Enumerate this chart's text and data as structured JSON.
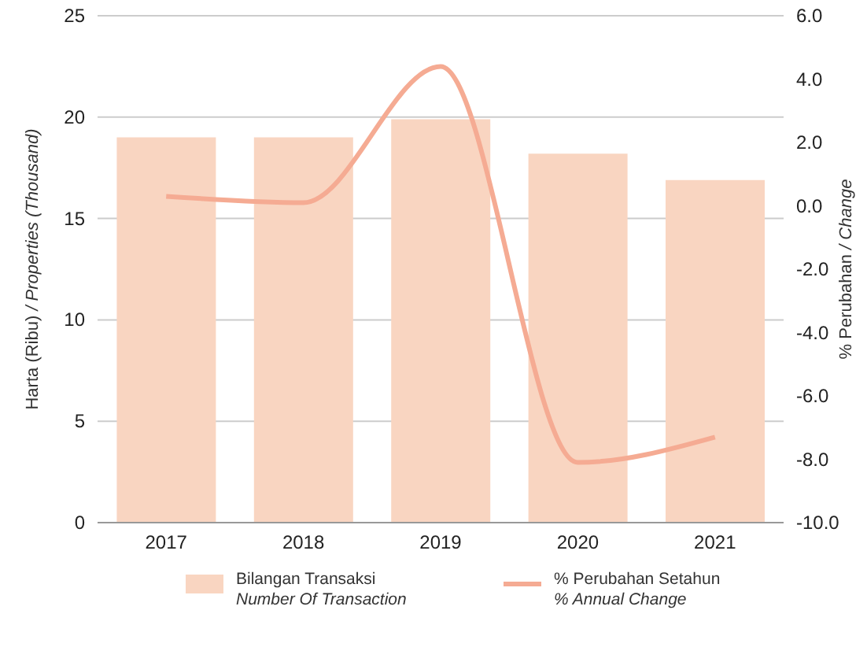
{
  "chart_data": {
    "type": "bar",
    "categories": [
      "2017",
      "2018",
      "2019",
      "2020",
      "2021"
    ],
    "series": [
      {
        "name": "Bilangan Transaksi\nNumber Of Transaction",
        "color": "#f9d5c1",
        "values": [
          19.0,
          19.0,
          19.9,
          18.2,
          16.9
        ]
      },
      {
        "name": "% Perubahan Setahun\n% Annual Change",
        "type": "line",
        "axis": "y2",
        "color": "#f5ab93",
        "values": [
          0.3,
          0.1,
          4.4,
          -8.1,
          -7.3
        ]
      }
    ],
    "ylabel": "Harta (Ribu) / Properties (Thousand)",
    "y2label": "% Perubahan / Change",
    "ylim": [
      0,
      25
    ],
    "yticks": [
      0,
      5,
      10,
      15,
      20,
      25
    ],
    "y2lim": [
      -10,
      6
    ],
    "y2ticks": [
      {
        "value": -10,
        "label": "-10.0"
      },
      {
        "value": -8,
        "label": "-8.0"
      },
      {
        "value": -6,
        "label": "-6.0"
      },
      {
        "value": -4,
        "label": "-4.0"
      },
      {
        "value": -2,
        "label": "-2.0"
      },
      {
        "value": 0,
        "label": "0.0"
      },
      {
        "value": 2,
        "label": "2.0"
      },
      {
        "value": 4,
        "label": "4.0"
      },
      {
        "value": 6,
        "label": "6.0"
      }
    ],
    "grid": "y",
    "legend": "bottom",
    "marker": "none"
  }
}
